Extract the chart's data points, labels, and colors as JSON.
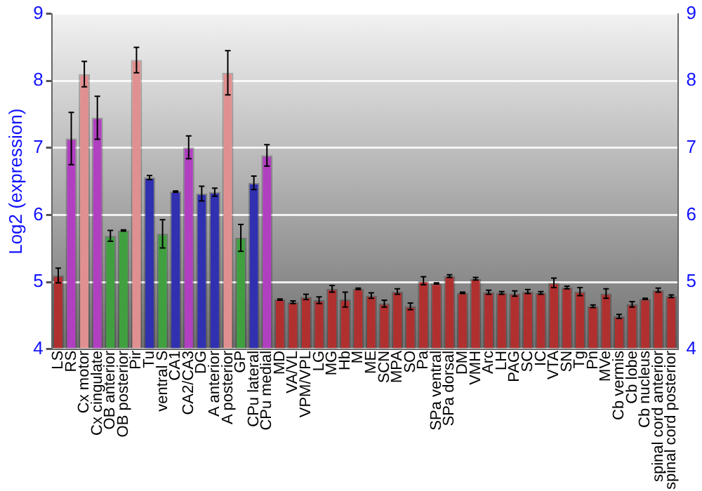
{
  "chart_data": {
    "type": "bar",
    "ylabel": "Log2 (expression)",
    "categories": [
      "LS",
      "RS",
      "Cx motor",
      "Cx cingulate",
      "OB anterior",
      "OB posterior",
      "Pir",
      "Tu",
      "ventral S",
      "CA1",
      "CA2/CA3",
      "DG",
      "A anterior",
      "A posterior",
      "GP",
      "CPu lateral",
      "CPu medial",
      "MD",
      "VA/VL",
      "VPM/VPL",
      "LG",
      "MG",
      "Hb",
      "M",
      "ME",
      "SCN",
      "MPA",
      "SO",
      "Pa",
      "SPa ventral",
      "SPa dorsal",
      "DM",
      "VMH",
      "Arc",
      "LH",
      "PAG",
      "SC",
      "IC",
      "VTA",
      "SN",
      "Tg",
      "Pn",
      "MVe",
      "Cb vermis",
      "Cb lobe",
      "Cb nucleus",
      "spinal cord anterior",
      "spinal cord posterior"
    ],
    "values": [
      5.1,
      7.14,
      8.1,
      7.45,
      5.69,
      5.77,
      8.31,
      6.56,
      5.72,
      6.35,
      7.01,
      6.32,
      6.34,
      8.12,
      5.66,
      6.48,
      6.89,
      4.74,
      4.7,
      4.78,
      4.73,
      4.9,
      4.74,
      4.9,
      4.8,
      4.68,
      4.86,
      4.64,
      5.02,
      4.98,
      5.09,
      4.84,
      5.05,
      4.85,
      4.84,
      4.83,
      4.86,
      4.84,
      4.99,
      4.92,
      4.86,
      4.64,
      4.83,
      4.49,
      4.67,
      4.75,
      4.88,
      4.79
    ],
    "errors": [
      0.11,
      0.39,
      0.19,
      0.32,
      0.08,
      0.01,
      0.19,
      0.03,
      0.21,
      0.01,
      0.17,
      0.11,
      0.06,
      0.33,
      0.2,
      0.1,
      0.16,
      0.01,
      0.02,
      0.04,
      0.05,
      0.05,
      0.11,
      0.01,
      0.04,
      0.05,
      0.04,
      0.05,
      0.06,
      0.01,
      0.02,
      0.01,
      0.02,
      0.03,
      0.02,
      0.04,
      0.03,
      0.02,
      0.07,
      0.02,
      0.06,
      0.02,
      0.07,
      0.03,
      0.04,
      0.01,
      0.03,
      0.02
    ],
    "colors": [
      "#b03030",
      "#b040c0",
      "#e09090",
      "#b040c0",
      "#40a040",
      "#40a040",
      "#e09090",
      "#3030b0",
      "#40a040",
      "#3030b0",
      "#b040c0",
      "#3030b0",
      "#3030b0",
      "#e09090",
      "#40a040",
      "#3030b0",
      "#b040c0",
      "#b03030",
      "#b03030",
      "#b03030",
      "#b03030",
      "#b03030",
      "#b03030",
      "#b03030",
      "#b03030",
      "#b03030",
      "#b03030",
      "#b03030",
      "#b03030",
      "#b03030",
      "#b03030",
      "#b03030",
      "#b03030",
      "#b03030",
      "#b03030",
      "#b03030",
      "#b03030",
      "#b03030",
      "#b03030",
      "#b03030",
      "#b03030",
      "#b03030",
      "#b03030",
      "#b03030",
      "#b03030",
      "#b03030",
      "#b03030",
      "#b03030"
    ],
    "ylim": [
      4,
      9
    ],
    "yticks": [
      4,
      5,
      6,
      7,
      8,
      9
    ],
    "y2lim": [
      4,
      9
    ],
    "y2ticks": [
      4,
      5,
      6,
      7,
      8,
      9
    ],
    "grid": "y",
    "legend": false
  }
}
